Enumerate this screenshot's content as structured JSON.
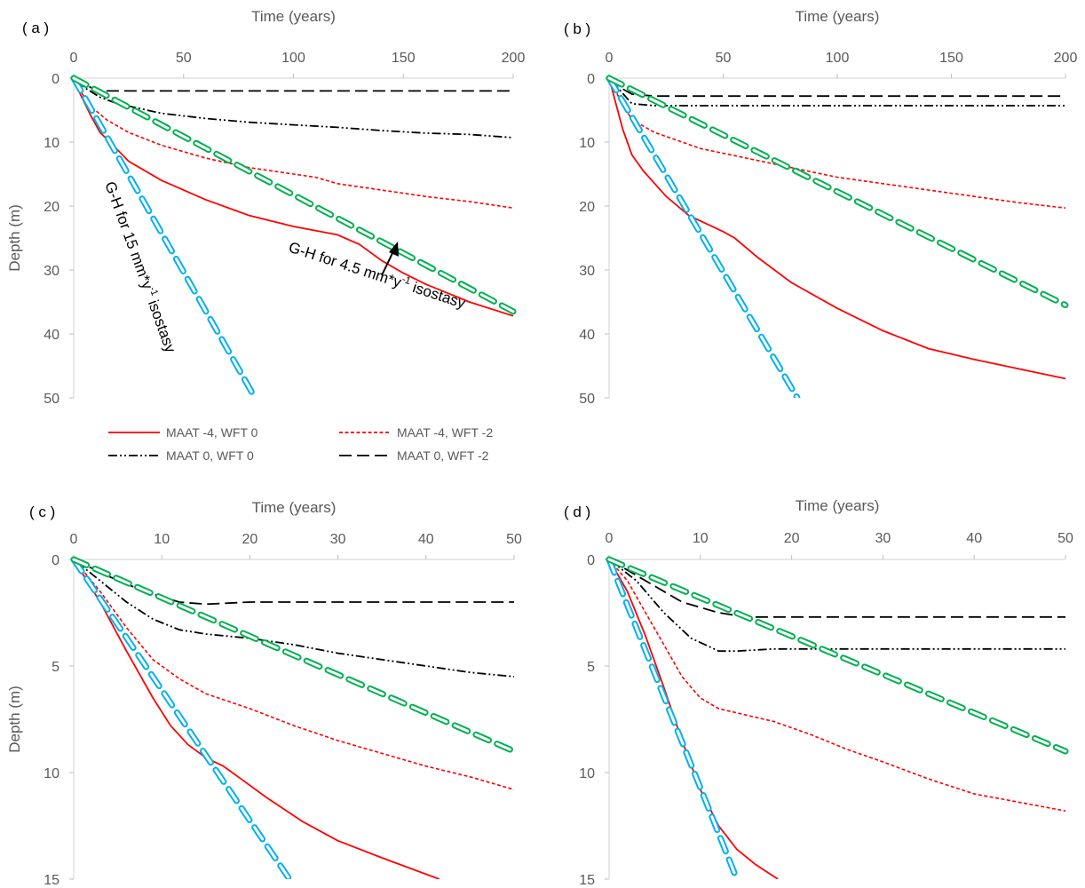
{
  "figure": {
    "colors": {
      "MAAT -4, WFT 0": "#ff0000",
      "MAAT -4, WFT -2": "#ff0000",
      "MAAT 0, WFT 0": "#000000",
      "MAAT 0, WFT -2": "#000000",
      "G-H 15": "#00b0f0",
      "G-H 4.5": "#00b050",
      "axis_text": "#595959"
    },
    "legend_placement": "below panel (a)"
  },
  "annotations": {
    "gh15_prefix": "G-H for 15 mm*y",
    "gh15_sup": "-1",
    "gh15_suffix": " isostasy",
    "gh45_prefix": "G-H for 4.5 mm*y",
    "gh45_sup": "-1",
    "gh45_suffix": " isostasy"
  },
  "chart_data": [
    {
      "type": "line",
      "panel_label": "( a )",
      "xlabel": "Time (years)",
      "ylabel": "Depth (m)",
      "xlim": [
        0,
        200
      ],
      "ylim": [
        0,
        50
      ],
      "xticks": [
        0,
        50,
        100,
        150,
        200
      ],
      "yticks": [
        0,
        10,
        20,
        30,
        40,
        50
      ],
      "y_inverted": true,
      "x_axis_position": "top",
      "grid": false,
      "series": [
        {
          "name": "MAAT -4, WFT 0",
          "style": "solid",
          "points": [
            [
              0,
              0
            ],
            [
              3,
              2.5
            ],
            [
              8,
              6
            ],
            [
              12,
              8.5
            ],
            [
              18,
              10.5
            ],
            [
              25,
              13
            ],
            [
              40,
              16
            ],
            [
              60,
              19
            ],
            [
              80,
              21.5
            ],
            [
              100,
              23.2
            ],
            [
              120,
              24.5
            ],
            [
              130,
              26
            ],
            [
              140,
              28.5
            ],
            [
              150,
              30.5
            ],
            [
              160,
              32.2
            ],
            [
              180,
              35
            ],
            [
              200,
              37.2
            ]
          ]
        },
        {
          "name": "MAAT -4, WFT -2",
          "style": "dotted",
          "points": [
            [
              0,
              0
            ],
            [
              3,
              2
            ],
            [
              8,
              4.5
            ],
            [
              15,
              6.5
            ],
            [
              25,
              8.5
            ],
            [
              40,
              10.5
            ],
            [
              60,
              12.5
            ],
            [
              80,
              14
            ],
            [
              100,
              15
            ],
            [
              110,
              15.5
            ],
            [
              120,
              16.5
            ],
            [
              140,
              17.5
            ],
            [
              160,
              18.5
            ],
            [
              180,
              19.3
            ],
            [
              200,
              20.3
            ]
          ]
        },
        {
          "name": "MAAT 0, WFT 0",
          "style": "dash-dot",
          "points": [
            [
              0,
              0
            ],
            [
              5,
              1.5
            ],
            [
              12,
              3
            ],
            [
              20,
              4
            ],
            [
              40,
              5.5
            ],
            [
              60,
              6.3
            ],
            [
              80,
              6.9
            ],
            [
              100,
              7.3
            ],
            [
              120,
              7.7
            ],
            [
              140,
              8.2
            ],
            [
              160,
              8.6
            ],
            [
              180,
              8.8
            ],
            [
              200,
              9.3
            ]
          ]
        },
        {
          "name": "MAAT 0, WFT -2",
          "style": "long-dash",
          "points": [
            [
              0,
              0
            ],
            [
              8,
              1.5
            ],
            [
              15,
              2
            ],
            [
              50,
              2
            ],
            [
              100,
              2
            ],
            [
              150,
              2
            ],
            [
              200,
              2
            ]
          ]
        },
        {
          "name": "G-H for 15 mm*y-1 isostasy",
          "style": "capsule-cyan",
          "points": [
            [
              0,
              0
            ],
            [
              82.5,
              50
            ]
          ]
        },
        {
          "name": "G-H for 4.5 mm*y-1 isostasy",
          "style": "capsule-green",
          "points": [
            [
              0,
              0
            ],
            [
              200,
              36.5
            ]
          ]
        }
      ]
    },
    {
      "type": "line",
      "panel_label": "( b )",
      "xlabel": "Time (years)",
      "ylabel": "",
      "xlim": [
        0,
        200
      ],
      "ylim": [
        0,
        50
      ],
      "xticks": [
        0,
        50,
        100,
        150,
        200
      ],
      "yticks": [
        0,
        10,
        20,
        30,
        40,
        50
      ],
      "y_inverted": true,
      "x_axis_position": "top",
      "grid": false,
      "series": [
        {
          "name": "MAAT -4, WFT 0",
          "style": "solid",
          "points": [
            [
              0,
              0
            ],
            [
              3,
              4
            ],
            [
              6,
              8
            ],
            [
              10,
              12
            ],
            [
              15,
              14.5
            ],
            [
              25,
              18.5
            ],
            [
              35,
              21.5
            ],
            [
              50,
              24
            ],
            [
              55,
              25
            ],
            [
              65,
              28
            ],
            [
              80,
              32
            ],
            [
              100,
              36
            ],
            [
              120,
              39.5
            ],
            [
              140,
              42.3
            ],
            [
              160,
              44
            ],
            [
              180,
              45.5
            ],
            [
              200,
              47
            ]
          ]
        },
        {
          "name": "MAAT -4, WFT -2",
          "style": "dotted",
          "points": [
            [
              0,
              0
            ],
            [
              5,
              3.5
            ],
            [
              10,
              6.5
            ],
            [
              20,
              8.5
            ],
            [
              40,
              11
            ],
            [
              60,
              12.5
            ],
            [
              80,
              14
            ],
            [
              100,
              15.5
            ],
            [
              120,
              16.5
            ],
            [
              140,
              17.5
            ],
            [
              160,
              18.5
            ],
            [
              170,
              19
            ],
            [
              180,
              19.5
            ],
            [
              200,
              20.3
            ]
          ]
        },
        {
          "name": "MAAT 0, WFT 0",
          "style": "dash-dot",
          "points": [
            [
              0,
              0
            ],
            [
              5,
              2
            ],
            [
              10,
              4
            ],
            [
              20,
              4.3
            ],
            [
              50,
              4.3
            ],
            [
              100,
              4.3
            ],
            [
              150,
              4.3
            ],
            [
              200,
              4.3
            ]
          ]
        },
        {
          "name": "MAAT 0, WFT -2",
          "style": "long-dash",
          "points": [
            [
              0,
              0
            ],
            [
              5,
              1.5
            ],
            [
              10,
              2.5
            ],
            [
              20,
              2.8
            ],
            [
              50,
              2.8
            ],
            [
              100,
              2.8
            ],
            [
              150,
              2.8
            ],
            [
              200,
              2.8
            ]
          ]
        },
        {
          "name": "G-H for 15 mm*y-1 isostasy",
          "style": "capsule-cyan",
          "points": [
            [
              0,
              0
            ],
            [
              82.5,
              50
            ]
          ]
        },
        {
          "name": "G-H for 4.5 mm*y-1 isostasy",
          "style": "capsule-green",
          "points": [
            [
              0,
              0
            ],
            [
              200,
              35.5
            ]
          ]
        }
      ]
    },
    {
      "type": "line",
      "panel_label": "( c )",
      "xlabel": "Time (years)",
      "ylabel": "Depth (m)",
      "xlim": [
        0,
        50
      ],
      "ylim": [
        0,
        15
      ],
      "xticks": [
        0,
        10,
        20,
        30,
        40,
        50
      ],
      "yticks": [
        0,
        5,
        10,
        15
      ],
      "y_inverted": true,
      "x_axis_position": "top",
      "grid": false,
      "series": [
        {
          "name": "MAAT -4, WFT 0",
          "style": "solid",
          "points": [
            [
              0,
              0
            ],
            [
              3,
              2
            ],
            [
              6,
              4.3
            ],
            [
              9,
              6.5
            ],
            [
              11,
              7.8
            ],
            [
              13,
              8.7
            ],
            [
              15,
              9.3
            ],
            [
              17,
              9.7
            ],
            [
              19,
              10.3
            ],
            [
              22,
              11.2
            ],
            [
              26,
              12.3
            ],
            [
              30,
              13.2
            ],
            [
              35,
              14
            ],
            [
              41.5,
              15
            ]
          ]
        },
        {
          "name": "MAAT -4, WFT -2",
          "style": "dotted",
          "points": [
            [
              0,
              0
            ],
            [
              3,
              1.5
            ],
            [
              6,
              3.2
            ],
            [
              9,
              4.7
            ],
            [
              12,
              5.6
            ],
            [
              15,
              6.3
            ],
            [
              20,
              7
            ],
            [
              25,
              7.8
            ],
            [
              30,
              8.5
            ],
            [
              35,
              9.1
            ],
            [
              40,
              9.7
            ],
            [
              45,
              10.2
            ],
            [
              50,
              10.8
            ]
          ]
        },
        {
          "name": "MAAT 0, WFT 0",
          "style": "dash-dot",
          "points": [
            [
              0,
              0
            ],
            [
              3,
              1
            ],
            [
              6,
              2
            ],
            [
              9,
              2.8
            ],
            [
              12,
              3.3
            ],
            [
              15,
              3.5
            ],
            [
              20,
              3.7
            ],
            [
              25,
              4
            ],
            [
              30,
              4.4
            ],
            [
              35,
              4.7
            ],
            [
              40,
              5
            ],
            [
              45,
              5.3
            ],
            [
              50,
              5.5
            ]
          ]
        },
        {
          "name": "MAAT 0, WFT -2",
          "style": "long-dash",
          "points": [
            [
              0,
              0
            ],
            [
              4,
              0.8
            ],
            [
              8,
              1.5
            ],
            [
              12,
              2
            ],
            [
              15,
              2.1
            ],
            [
              20,
              2
            ],
            [
              30,
              2
            ],
            [
              40,
              2
            ],
            [
              50,
              2
            ]
          ]
        },
        {
          "name": "G-H for 15 mm*y-1 isostasy",
          "style": "capsule-cyan",
          "points": [
            [
              0,
              0
            ],
            [
              24.5,
              15
            ]
          ]
        },
        {
          "name": "G-H for 4.5 mm*y-1 isostasy",
          "style": "capsule-green",
          "points": [
            [
              0,
              0
            ],
            [
              50,
              9
            ]
          ]
        }
      ]
    },
    {
      "type": "line",
      "panel_label": "( d )",
      "xlabel": "Time (years)",
      "ylabel": "",
      "xlim": [
        0,
        50
      ],
      "ylim": [
        0,
        15
      ],
      "xticks": [
        0,
        10,
        20,
        30,
        40,
        50
      ],
      "yticks": [
        0,
        5,
        10,
        15
      ],
      "y_inverted": true,
      "x_axis_position": "top",
      "grid": false,
      "series": [
        {
          "name": "MAAT -4, WFT 0",
          "style": "solid",
          "points": [
            [
              0,
              0
            ],
            [
              2,
              1.5
            ],
            [
              4,
              3.6
            ],
            [
              6,
              6
            ],
            [
              8,
              8.5
            ],
            [
              10,
              10.8
            ],
            [
              12,
              12.5
            ],
            [
              14,
              13.6
            ],
            [
              16,
              14.3
            ],
            [
              18.5,
              15
            ]
          ]
        },
        {
          "name": "MAAT -4, WFT -2",
          "style": "dotted",
          "points": [
            [
              0,
              0
            ],
            [
              2,
              1
            ],
            [
              4,
              2.5
            ],
            [
              6,
              4
            ],
            [
              8,
              5.5
            ],
            [
              10,
              6.5
            ],
            [
              12,
              7
            ],
            [
              15,
              7.3
            ],
            [
              18,
              7.6
            ],
            [
              22,
              8.2
            ],
            [
              26,
              8.9
            ],
            [
              30,
              9.5
            ],
            [
              35,
              10.3
            ],
            [
              40,
              11
            ],
            [
              45,
              11.4
            ],
            [
              50,
              11.8
            ]
          ]
        },
        {
          "name": "MAAT 0, WFT 0",
          "style": "dash-dot",
          "points": [
            [
              0,
              0
            ],
            [
              3,
              1
            ],
            [
              6,
              2.5
            ],
            [
              9,
              3.7
            ],
            [
              12,
              4.3
            ],
            [
              14,
              4.3
            ],
            [
              18,
              4.2
            ],
            [
              25,
              4.2
            ],
            [
              35,
              4.2
            ],
            [
              50,
              4.2
            ]
          ]
        },
        {
          "name": "MAAT 0, WFT -2",
          "style": "long-dash",
          "points": [
            [
              0,
              0
            ],
            [
              4,
              1
            ],
            [
              8,
              2
            ],
            [
              12,
              2.5
            ],
            [
              15,
              2.7
            ],
            [
              25,
              2.7
            ],
            [
              35,
              2.7
            ],
            [
              50,
              2.7
            ]
          ]
        },
        {
          "name": "G-H for 15 mm*y-1 isostasy",
          "style": "capsule-cyan",
          "points": [
            [
              0,
              0
            ],
            [
              14,
              15
            ]
          ]
        },
        {
          "name": "G-H for 4.5 mm*y-1 isostasy",
          "style": "capsule-green",
          "points": [
            [
              0,
              0
            ],
            [
              50,
              9
            ]
          ]
        }
      ]
    }
  ],
  "legend": {
    "items": [
      {
        "label": "MAAT -4, WFT 0",
        "style": "solid"
      },
      {
        "label": "MAAT -4, WFT -2",
        "style": "dotted"
      },
      {
        "label": "MAAT 0, WFT 0",
        "style": "dash-dot"
      },
      {
        "label": "MAAT 0, WFT -2",
        "style": "long-dash"
      }
    ]
  }
}
